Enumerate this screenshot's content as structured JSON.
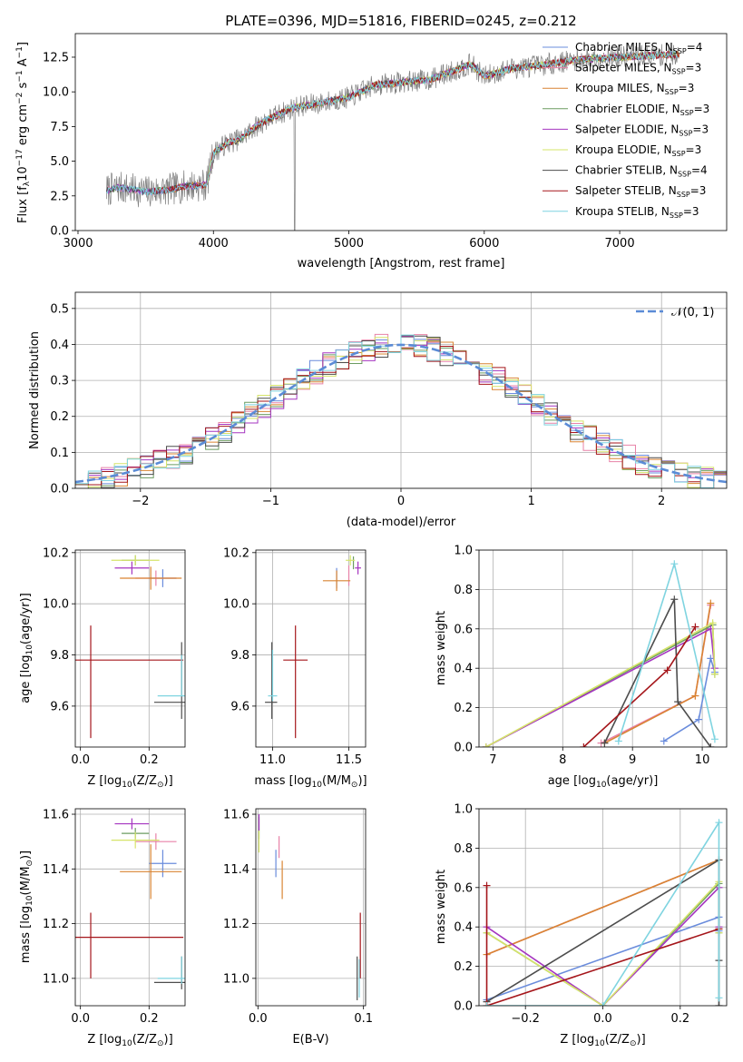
{
  "colors": {
    "chabrier_miles": "#6a8cdc",
    "salpeter_miles": "#e882a8",
    "kroupa_miles": "#d98432",
    "chabrier_elodie": "#6b9c61",
    "salpeter_elodie": "#a535c0",
    "kroupa_elodie": "#d6e46a",
    "chabrier_stelib": "#4d4d4d",
    "salpeter_stelib": "#a5161b",
    "kroupa_stelib": "#7fd4e0",
    "normal": "#5b8bd6"
  },
  "chart_data": [
    {
      "id": "spectrum",
      "type": "line",
      "title": "PLATE=0396, MJD=51816, FIBERID=0245, z=0.212",
      "xlabel": "wavelength [Angstrom, rest frame]",
      "ylabel_main": "Flux [f",
      "ylabel_sub": "λ",
      "ylabel_rest": "10",
      "ylabel_exp": "−17",
      "ylabel_units": " erg cm",
      "ylabel_units2": "−2",
      "ylabel_units3": " s",
      "ylabel_units4": "−1",
      "ylabel_units5": " A",
      "ylabel_units6": "−1",
      "ylabel_end": "]",
      "xlim": [
        2980,
        7790
      ],
      "ylim": [
        0,
        14.2
      ],
      "xticks": [
        3000,
        4000,
        5000,
        6000,
        7000
      ],
      "yticks": [
        0.0,
        2.5,
        5.0,
        7.5,
        10.0,
        12.5
      ],
      "ytick_labels": [
        "0.0",
        "2.5",
        "5.0",
        "7.5",
        "10.0",
        "12.5"
      ],
      "grid": false,
      "legend_position": "top-right",
      "data_range": [
        3210,
        7440
      ],
      "continuum_knots": {
        "x": [
          3210,
          3300,
          3500,
          3650,
          3800,
          3950,
          4000,
          4100,
          4200,
          4300,
          4400,
          4600,
          4800,
          5000,
          5200,
          5400,
          5600,
          5800,
          5900,
          6000,
          6200,
          6400,
          6600,
          6800,
          7000,
          7200,
          7440
        ],
        "y": [
          2.9,
          3.1,
          2.8,
          2.9,
          3.2,
          3.3,
          5.6,
          6.3,
          6.6,
          7.4,
          8.0,
          8.9,
          9.2,
          9.6,
          10.5,
          10.7,
          10.9,
          11.6,
          12.0,
          11.1,
          11.7,
          11.9,
          12.2,
          12.4,
          12.5,
          12.6,
          12.7
        ]
      },
      "series": [
        {
          "key": "chabrier_miles",
          "name": "Chabrier MILES, N",
          "nssp": "=4"
        },
        {
          "key": "salpeter_miles",
          "name": "Salpeter MILES, N",
          "nssp": "=3"
        },
        {
          "key": "kroupa_miles",
          "name": "Kroupa MILES, N",
          "nssp": "=3"
        },
        {
          "key": "chabrier_elodie",
          "name": "Chabrier ELODIE, N",
          "nssp": "=3"
        },
        {
          "key": "salpeter_elodie",
          "name": "Salpeter ELODIE, N",
          "nssp": "=3"
        },
        {
          "key": "kroupa_elodie",
          "name": "Kroupa ELODIE, N",
          "nssp": "=3"
        },
        {
          "key": "chabrier_stelib",
          "name": "Chabrier STELIB, N",
          "nssp": "=4"
        },
        {
          "key": "salpeter_stelib",
          "name": "Salpeter STELIB, N",
          "nssp": "=3"
        },
        {
          "key": "kroupa_stelib",
          "name": "Kroupa STELIB, N",
          "nssp": "=3"
        }
      ],
      "nssp_sub": "SSP"
    },
    {
      "id": "residuals",
      "type": "histogram",
      "xlabel": "(data-model)/error",
      "ylabel": "Normed distribution",
      "xlim": [
        -2.5,
        2.5
      ],
      "ylim": [
        0,
        0.545
      ],
      "xticks": [
        -2,
        -1,
        0,
        1,
        2
      ],
      "xtick_labels": [
        "−2",
        "−1",
        "0",
        "1",
        "2"
      ],
      "yticks": [
        0.0,
        0.1,
        0.2,
        0.3,
        0.4,
        0.5
      ],
      "ytick_labels": [
        "0.0",
        "0.1",
        "0.2",
        "0.3",
        "0.4",
        "0.5"
      ],
      "grid": true,
      "bin_width": 0.1,
      "legend_position": "top-right",
      "normal_label": "𝒩(0, 1)",
      "normal_sigma": 1.0
    },
    {
      "id": "age_vs_Z",
      "type": "errorbar",
      "xlabel": "Z [log",
      "xlabel_sub": "10",
      "xlabel_rest": "(Z/Z",
      "xlabel_sun": "⊙",
      "xlabel_end": ")]",
      "ylabel": "age  [log",
      "ylabel_sub": "10",
      "ylabel_rest": "(age/yr)]",
      "xlim": [
        -0.015,
        0.305
      ],
      "ylim": [
        9.44,
        10.21
      ],
      "xticks": [
        0.0,
        0.2
      ],
      "xtick_labels": [
        "0.0",
        "0.2"
      ],
      "yticks": [
        9.6,
        9.8,
        10.0,
        10.2
      ],
      "ytick_labels": [
        "9.6",
        "9.8",
        "10.0",
        "10.2"
      ],
      "grid": true,
      "points": [
        {
          "key": "chabrier_miles",
          "x": 0.24,
          "y": 10.1,
          "xerr": 0.04,
          "yerr": 0.035
        },
        {
          "key": "salpeter_miles",
          "x": 0.22,
          "y": 10.1,
          "xerr": 0.06,
          "yerr": 0.03
        },
        {
          "key": "kroupa_miles",
          "x": 0.205,
          "y": 10.1,
          "xerr": 0.09,
          "yerr": 0.045
        },
        {
          "key": "chabrier_elodie",
          "x": 0.16,
          "y": 10.17,
          "xerr": 0.04,
          "yerr": 0.02
        },
        {
          "key": "salpeter_elodie",
          "x": 0.15,
          "y": 10.14,
          "xerr": 0.05,
          "yerr": 0.025
        },
        {
          "key": "kroupa_elodie",
          "x": 0.16,
          "y": 10.17,
          "xerr": 0.07,
          "yerr": 0.02
        },
        {
          "key": "chabrier_stelib",
          "x": 0.295,
          "y": 9.615,
          "xerr": 0.08,
          "yerr": 0.0
        },
        {
          "key": "chabrier_stelib",
          "x": 0.295,
          "y": 9.7,
          "xerr": 0.0,
          "yerr": 0.15
        },
        {
          "key": "salpeter_stelib",
          "x": 0.03,
          "y": 9.78,
          "xerr": 0.27,
          "yerr": 0.0
        },
        {
          "key": "salpeter_stelib",
          "x": 0.03,
          "y": 9.695,
          "xerr": 0.0,
          "yerr": 0.22
        },
        {
          "key": "kroupa_stelib",
          "x": 0.295,
          "y": 9.64,
          "xerr": 0.07,
          "yerr": 0.0
        },
        {
          "key": "kroupa_stelib",
          "x": 0.295,
          "y": 9.72,
          "xerr": 0.0,
          "yerr": 0.08
        }
      ]
    },
    {
      "id": "age_vs_mass",
      "type": "errorbar",
      "xlabel": "mass [log",
      "xlabel_sub": "10",
      "xlabel_rest": "(M/M",
      "xlabel_sun": "⊙",
      "xlabel_end": ")]",
      "xlim": [
        10.89,
        11.61
      ],
      "ylim": [
        9.44,
        10.21
      ],
      "xticks": [
        11.0,
        11.5
      ],
      "xtick_labels": [
        "11.0",
        "11.5"
      ],
      "yticks": [
        9.6,
        9.8,
        10.0,
        10.2
      ],
      "ytick_labels": [
        "9.6",
        "9.8",
        "10.0",
        "10.2"
      ],
      "grid": true,
      "points": [
        {
          "key": "chabrier_miles",
          "x": 11.42,
          "y": 10.1,
          "xerr": 0.0,
          "yerr": 0.04
        },
        {
          "key": "salpeter_miles",
          "x": 11.5,
          "y": 10.11,
          "xerr": 0.0,
          "yerr": 0.04
        },
        {
          "key": "kroupa_miles",
          "x": 11.42,
          "y": 10.09,
          "xerr": 0.09,
          "yerr": 0.04
        },
        {
          "key": "chabrier_elodie",
          "x": 11.53,
          "y": 10.16,
          "xerr": 0.0,
          "yerr": 0.025
        },
        {
          "key": "salpeter_elodie",
          "x": 11.56,
          "y": 10.14,
          "xerr": 0.02,
          "yerr": 0.025
        },
        {
          "key": "kroupa_elodie",
          "x": 11.51,
          "y": 10.17,
          "xerr": 0.03,
          "yerr": 0.02
        },
        {
          "key": "chabrier_stelib",
          "x": 10.99,
          "y": 9.615,
          "xerr": 0.04,
          "yerr": 0.0
        },
        {
          "key": "chabrier_stelib",
          "x": 10.995,
          "y": 9.7,
          "xerr": 0.0,
          "yerr": 0.15
        },
        {
          "key": "salpeter_stelib",
          "x": 11.15,
          "y": 9.78,
          "xerr": 0.08,
          "yerr": 0.0
        },
        {
          "key": "salpeter_stelib",
          "x": 11.15,
          "y": 9.695,
          "xerr": 0.0,
          "yerr": 0.22
        },
        {
          "key": "kroupa_stelib",
          "x": 11.0,
          "y": 9.64,
          "xerr": 0.03,
          "yerr": 0.0
        },
        {
          "key": "kroupa_stelib",
          "x": 11.0,
          "y": 9.72,
          "xerr": 0.0,
          "yerr": 0.1
        }
      ]
    },
    {
      "id": "weight_vs_age",
      "type": "line",
      "xlabel": "age  [log",
      "xlabel_sub": "10",
      "xlabel_rest": "(age/yr)]",
      "ylabel": "mass weight",
      "xlim": [
        6.8,
        10.35
      ],
      "ylim": [
        0,
        1.0
      ],
      "xticks": [
        7,
        8,
        9,
        10
      ],
      "xtick_labels": [
        "7",
        "8",
        "9",
        "10"
      ],
      "yticks": [
        0.0,
        0.2,
        0.4,
        0.6,
        0.8,
        1.0
      ],
      "ytick_labels": [
        "0.0",
        "0.2",
        "0.4",
        "0.6",
        "0.8",
        "1.0"
      ],
      "grid": true,
      "series": [
        {
          "key": "chabrier_miles",
          "x": [
            9.45,
            9.95,
            10.12,
            10.18
          ],
          "y": [
            0.03,
            0.14,
            0.45,
            0.38
          ]
        },
        {
          "key": "salpeter_miles",
          "x": [
            8.55,
            9.9,
            10.12
          ],
          "y": [
            0.02,
            0.26,
            0.72
          ]
        },
        {
          "key": "kroupa_miles",
          "x": [
            8.6,
            9.9,
            10.12
          ],
          "y": [
            0.02,
            0.26,
            0.73
          ]
        },
        {
          "key": "chabrier_elodie",
          "x": [
            6.9,
            10.15,
            10.18
          ],
          "y": [
            0.0,
            0.62,
            0.37
          ]
        },
        {
          "key": "salpeter_elodie",
          "x": [
            6.9,
            10.12,
            10.18
          ],
          "y": [
            0.0,
            0.6,
            0.4
          ]
        },
        {
          "key": "kroupa_elodie",
          "x": [
            6.9,
            10.15,
            10.18
          ],
          "y": [
            0.0,
            0.63,
            0.37
          ]
        },
        {
          "key": "chabrier_stelib",
          "x": [
            8.6,
            9.6,
            9.65,
            10.12
          ],
          "y": [
            0.02,
            0.75,
            0.23,
            0.0
          ]
        },
        {
          "key": "salpeter_stelib",
          "x": [
            8.3,
            9.5,
            9.9
          ],
          "y": [
            0.0,
            0.39,
            0.61
          ]
        },
        {
          "key": "kroupa_stelib",
          "x": [
            8.8,
            9.6,
            10.18
          ],
          "y": [
            0.03,
            0.93,
            0.04
          ]
        }
      ]
    },
    {
      "id": "mass_vs_Z",
      "type": "errorbar",
      "xlabel": "Z [log",
      "xlabel_sub": "10",
      "xlabel_rest": "(Z/Z",
      "xlabel_sun": "⊙",
      "xlabel_end": ")]",
      "ylabel": "mass [log",
      "ylabel_sub": "10",
      "ylabel_rest": "(M/M",
      "ylabel_sun": "⊙",
      "ylabel_end": ")]",
      "xlim": [
        -0.015,
        0.305
      ],
      "ylim": [
        10.9,
        11.62
      ],
      "xticks": [
        0.0,
        0.2
      ],
      "xtick_labels": [
        "0.0",
        "0.2"
      ],
      "yticks": [
        11.0,
        11.2,
        11.4,
        11.6
      ],
      "ytick_labels": [
        "11.0",
        "11.2",
        "11.4",
        "11.6"
      ],
      "grid": true,
      "points": [
        {
          "key": "chabrier_miles",
          "x": 0.24,
          "y": 11.42,
          "xerr": 0.04,
          "yerr": 0.05
        },
        {
          "key": "salpeter_miles",
          "x": 0.22,
          "y": 11.5,
          "xerr": 0.06,
          "yerr": 0.03
        },
        {
          "key": "kroupa_miles",
          "x": 0.205,
          "y": 11.39,
          "xerr": 0.09,
          "yerr": 0.1
        },
        {
          "key": "chabrier_elodie",
          "x": 0.16,
          "y": 11.53,
          "xerr": 0.04,
          "yerr": 0.02
        },
        {
          "key": "salpeter_elodie",
          "x": 0.15,
          "y": 11.565,
          "xerr": 0.05,
          "yerr": 0.02
        },
        {
          "key": "kroupa_elodie",
          "x": 0.16,
          "y": 11.505,
          "xerr": 0.07,
          "yerr": 0.03
        },
        {
          "key": "chabrier_stelib",
          "x": 0.295,
          "y": 10.985,
          "xerr": 0.08,
          "yerr": 0.0
        },
        {
          "key": "chabrier_stelib",
          "x": 0.295,
          "y": 11.02,
          "xerr": 0.0,
          "yerr": 0.06
        },
        {
          "key": "salpeter_stelib",
          "x": 0.03,
          "y": 11.15,
          "xerr": 0.27,
          "yerr": 0.0
        },
        {
          "key": "salpeter_stelib",
          "x": 0.03,
          "y": 11.12,
          "xerr": 0.0,
          "yerr": 0.12
        },
        {
          "key": "kroupa_stelib",
          "x": 0.295,
          "y": 11.0,
          "xerr": 0.07,
          "yerr": 0.0
        },
        {
          "key": "kroupa_stelib",
          "x": 0.295,
          "y": 11.03,
          "xerr": 0.0,
          "yerr": 0.05
        }
      ]
    },
    {
      "id": "mass_vs_ebv",
      "type": "errorbar",
      "xlabel": "E(B-V)",
      "xlim": [
        -0.002,
        0.102
      ],
      "ylim": [
        10.9,
        11.62
      ],
      "xticks": [
        0.0,
        0.1
      ],
      "xtick_labels": [
        "0.0",
        "0.1"
      ],
      "yticks": [
        11.0,
        11.2,
        11.4,
        11.6
      ],
      "ytick_labels": [
        "11.0",
        "11.2",
        "11.4",
        "11.6"
      ],
      "grid": true,
      "points": [
        {
          "key": "chabrier_miles",
          "x": 0.017,
          "y": 11.42,
          "xerr": 0.0,
          "yerr": 0.05
        },
        {
          "key": "salpeter_miles",
          "x": 0.02,
          "y": 11.48,
          "xerr": 0.0,
          "yerr": 0.04
        },
        {
          "key": "kroupa_miles",
          "x": 0.023,
          "y": 11.36,
          "xerr": 0.0,
          "yerr": 0.07
        },
        {
          "key": "chabrier_elodie",
          "x": 0.001,
          "y": 11.55,
          "xerr": 0.0,
          "yerr": 0.04
        },
        {
          "key": "salpeter_elodie",
          "x": 0.001,
          "y": 11.57,
          "xerr": 0.0,
          "yerr": 0.03
        },
        {
          "key": "kroupa_elodie",
          "x": 0.001,
          "y": 11.5,
          "xerr": 0.0,
          "yerr": 0.04
        },
        {
          "key": "chabrier_stelib",
          "x": 0.094,
          "y": 11.0,
          "xerr": 0.0,
          "yerr": 0.08
        },
        {
          "key": "salpeter_stelib",
          "x": 0.097,
          "y": 11.12,
          "xerr": 0.0,
          "yerr": 0.12
        },
        {
          "key": "kroupa_stelib",
          "x": 0.096,
          "y": 11.0,
          "xerr": 0.0,
          "yerr": 0.07
        }
      ]
    },
    {
      "id": "weight_vs_Z",
      "type": "line",
      "xlabel": "Z [log",
      "xlabel_sub": "10",
      "xlabel_rest": "(Z/Z",
      "xlabel_sun": "⊙",
      "xlabel_end": ")]",
      "ylabel": "mass weight",
      "xlim": [
        -0.32,
        0.32
      ],
      "ylim": [
        0,
        1.0
      ],
      "xticks": [
        -0.2,
        0.0,
        0.2
      ],
      "xtick_labels": [
        "−0.2",
        "0.0",
        "0.2"
      ],
      "yticks": [
        0.0,
        0.2,
        0.4,
        0.6,
        0.8,
        1.0
      ],
      "ytick_labels": [
        "0.0",
        "0.2",
        "0.4",
        "0.6",
        "0.8",
        "1.0"
      ],
      "grid": true,
      "series": [
        {
          "key": "chabrier_miles",
          "x": [
            -0.3,
            0.3,
            0.3
          ],
          "y": [
            0.03,
            0.45,
            0.38
          ]
        },
        {
          "key": "salpeter_miles",
          "x": [
            -0.3,
            0.3
          ],
          "y": [
            0.26,
            0.74
          ]
        },
        {
          "key": "kroupa_miles",
          "x": [
            -0.3,
            0.3
          ],
          "y": [
            0.26,
            0.74
          ]
        },
        {
          "key": "chabrier_elodie",
          "x": [
            -0.3,
            0.0,
            0.3,
            0.3
          ],
          "y": [
            0.37,
            0.0,
            0.62,
            0.37
          ]
        },
        {
          "key": "salpeter_elodie",
          "x": [
            -0.3,
            0.0,
            0.3,
            0.3
          ],
          "y": [
            0.4,
            0.0,
            0.6,
            0.4
          ]
        },
        {
          "key": "kroupa_elodie",
          "x": [
            -0.3,
            0.0,
            0.3,
            0.3
          ],
          "y": [
            0.37,
            0.0,
            0.63,
            0.37
          ]
        },
        {
          "key": "chabrier_stelib",
          "x": [
            -0.3,
            0.3,
            0.3,
            0.3
          ],
          "y": [
            0.02,
            0.74,
            0.23,
            0.0
          ]
        },
        {
          "key": "salpeter_stelib",
          "x": [
            -0.3,
            -0.3,
            0.3
          ],
          "y": [
            0.61,
            0.0,
            0.39
          ]
        },
        {
          "key": "kroupa_stelib",
          "x": [
            -0.3,
            0.0,
            0.3,
            0.3
          ],
          "y": [
            0.0,
            0.0,
            0.93,
            0.04
          ]
        }
      ]
    }
  ]
}
